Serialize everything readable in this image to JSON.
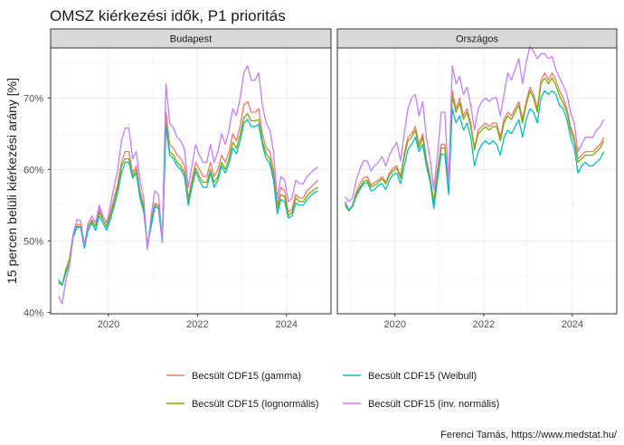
{
  "title": "OMSZ kiérkezési idők, P1 prioritás",
  "caption": "Ferenci Tamás, https://www.medstat.hu/",
  "colors": {
    "gamma": "#F8766D",
    "lognormal": "#7CAE00",
    "weibull": "#00BFC4",
    "invnormal": "#C77CFF",
    "strip_fill": "#d9d9d9",
    "grid": "#ebebeb",
    "panel_border": "#333333"
  },
  "chart_data": {
    "type": "line",
    "facets": [
      "Budapest",
      "Országos"
    ],
    "ylabel": "15 percen belüli kiérkezési arány [%]",
    "xlabel": "",
    "xlim": [
      2018.7,
      2025.0
    ],
    "ylim": [
      39.8,
      77.0
    ],
    "xticks": [
      2020,
      2022,
      2024
    ],
    "xtick_labels": [
      "2020",
      "2022",
      "2024"
    ],
    "yticks": [
      40,
      50,
      60,
      70
    ],
    "ytick_labels": [
      "40%",
      "50%",
      "60%",
      "70%"
    ],
    "grid": true,
    "legend": {
      "position": "bottom",
      "entries": [
        {
          "key": "gamma",
          "label": "Becsült CDF15 (gamma)"
        },
        {
          "key": "weibull",
          "label": "Becsült CDF15 (Weibull)"
        },
        {
          "key": "lognormal",
          "label": "Becsült CDF15 (lognormális)"
        },
        {
          "key": "invnormal",
          "label": "Becsült CDF15 (inv. normális)"
        }
      ]
    },
    "x": [
      2018.875,
      2018.958,
      2019.042,
      2019.125,
      2019.208,
      2019.292,
      2019.375,
      2019.458,
      2019.542,
      2019.625,
      2019.708,
      2019.792,
      2019.875,
      2019.958,
      2020.042,
      2020.125,
      2020.208,
      2020.292,
      2020.375,
      2020.458,
      2020.542,
      2020.625,
      2020.708,
      2020.792,
      2020.875,
      2020.958,
      2021.042,
      2021.125,
      2021.208,
      2021.292,
      2021.375,
      2021.458,
      2021.542,
      2021.625,
      2021.708,
      2021.792,
      2021.875,
      2021.958,
      2022.042,
      2022.125,
      2022.208,
      2022.292,
      2022.375,
      2022.458,
      2022.542,
      2022.625,
      2022.708,
      2022.792,
      2022.875,
      2022.958,
      2023.042,
      2023.125,
      2023.208,
      2023.292,
      2023.375,
      2023.458,
      2023.542,
      2023.625,
      2023.708,
      2023.792,
      2023.875,
      2023.958,
      2024.042,
      2024.125,
      2024.208,
      2024.292,
      2024.375,
      2024.458,
      2024.542,
      2024.625,
      2024.708
    ],
    "series": [
      {
        "facet": "Budapest",
        "values": {
          "gamma": [
            44.2,
            43.8,
            46,
            47.5,
            51,
            52.3,
            52.3,
            49,
            52,
            53,
            52,
            54.5,
            53,
            52,
            54,
            56,
            58,
            61,
            62.5,
            62.5,
            59.5,
            60.5,
            57,
            55,
            49,
            53,
            55.3,
            55,
            50,
            68,
            63.5,
            63,
            62,
            61.5,
            60.5,
            56,
            58.5,
            61,
            60,
            59,
            59,
            61,
            59,
            60,
            62,
            61,
            62.5,
            65,
            64,
            66,
            69,
            69.5,
            68,
            68,
            68.5,
            65,
            63,
            62.5,
            60,
            55,
            57.5,
            57,
            54,
            54.5,
            56.5,
            56,
            56,
            57,
            57.5,
            58,
            58.5
          ],
          "lognormal": [
            44.2,
            43.8,
            46,
            47.5,
            51,
            52,
            52,
            49,
            52,
            52.8,
            52,
            54,
            53,
            52,
            53.5,
            55.5,
            57.5,
            60.5,
            61.5,
            61.5,
            59,
            60,
            56.5,
            54.5,
            49,
            52.5,
            55,
            54.8,
            50,
            66.5,
            62.5,
            62,
            61,
            60.5,
            59.5,
            55.5,
            58,
            60.2,
            59,
            58.2,
            58.2,
            60,
            58.2,
            59,
            61,
            60,
            61.5,
            63.8,
            63,
            64.8,
            67.2,
            67.8,
            66.8,
            66.8,
            67,
            64,
            62.2,
            61.5,
            59.2,
            54.5,
            56.5,
            56.2,
            53.5,
            54,
            56,
            55.5,
            55.5,
            56.3,
            56.8,
            57.2,
            57.5
          ],
          "weibull": [
            44.6,
            43.8,
            45.5,
            46.8,
            50.5,
            51.9,
            51.9,
            49,
            51.5,
            52.5,
            51.5,
            53.5,
            52.5,
            51.5,
            53,
            54.8,
            56.8,
            59.5,
            61,
            61,
            58.8,
            59.5,
            56,
            54,
            49.5,
            52,
            54.8,
            54.5,
            49.8,
            66,
            62,
            61.5,
            60.5,
            60,
            59,
            55,
            57.5,
            59.7,
            58.5,
            57.5,
            57.5,
            59.5,
            57.5,
            58.5,
            60.5,
            59.5,
            60.8,
            63,
            62.2,
            64,
            66.5,
            67,
            66,
            66,
            66.3,
            63.5,
            61.5,
            60.8,
            58.5,
            53.8,
            55.8,
            55.5,
            53.2,
            53.5,
            55.3,
            55,
            55,
            55.8,
            56.3,
            56.8,
            57
          ],
          "invnormal": [
            42.3,
            41.2,
            44.5,
            46.5,
            51,
            53,
            52.8,
            49.5,
            52.5,
            53.5,
            52.5,
            55,
            53.5,
            52.5,
            55,
            57.5,
            60,
            64,
            65.8,
            65.8,
            61.5,
            62.5,
            58.5,
            56,
            48.8,
            53.5,
            57,
            56.5,
            50,
            72,
            66.5,
            65.8,
            64.5,
            64,
            62.8,
            57.5,
            60.5,
            63.5,
            62,
            61,
            61,
            63.5,
            61,
            62.5,
            65,
            63.5,
            65.5,
            68.5,
            67.5,
            70,
            73.5,
            74.5,
            72.5,
            72.5,
            73.5,
            69,
            66.5,
            65.5,
            62.5,
            56,
            59,
            58.5,
            55.5,
            56,
            58.5,
            58,
            58,
            59,
            59.5,
            60,
            60.3
          ]
        }
      },
      {
        "facet": "Országos",
        "values": {
          "gamma": [
            55.2,
            54.3,
            55,
            56.8,
            58,
            58.8,
            59,
            57.8,
            58.2,
            58.5,
            59,
            58.2,
            59.5,
            60.2,
            60.5,
            59,
            62.2,
            64.5,
            65,
            66,
            63.5,
            65,
            61.5,
            59,
            55.5,
            60,
            63.5,
            63.5,
            57,
            71,
            68.5,
            70,
            67.5,
            68.5,
            66.5,
            63,
            65.5,
            66,
            66.5,
            66,
            66.5,
            66.5,
            64.5,
            67,
            68,
            67.5,
            68.5,
            69.5,
            67,
            69.5,
            71.5,
            70.5,
            68.5,
            72.5,
            73.5,
            72.5,
            73.5,
            72.5,
            71,
            70,
            68.5,
            66,
            64.5,
            61.5,
            62,
            62.5,
            62.5,
            62.5,
            63,
            63.5,
            64.5
          ],
          "lognormal": [
            55,
            54.2,
            54.8,
            56.5,
            57.5,
            58.3,
            58.5,
            57.5,
            57.8,
            58.2,
            58.7,
            58,
            59.2,
            59.8,
            60.2,
            58.8,
            61.8,
            64,
            64.5,
            65.5,
            63,
            64.5,
            61,
            58.8,
            55.3,
            59.7,
            63,
            63,
            56.8,
            70.2,
            68,
            69.3,
            67,
            68,
            66,
            62.7,
            65,
            65.5,
            66,
            65.5,
            66,
            66,
            64,
            66.5,
            67.5,
            67,
            68,
            69,
            66.5,
            69,
            71,
            70,
            68,
            72,
            72.8,
            72,
            72.8,
            71.8,
            70.3,
            69.3,
            68,
            65.5,
            64,
            61,
            61.5,
            62,
            62,
            62,
            62.5,
            63,
            64
          ],
          "weibull": [
            55.5,
            54.3,
            54.8,
            56.2,
            57.2,
            58,
            58.2,
            57,
            57.2,
            57.8,
            58,
            57.2,
            58.5,
            59.3,
            59.5,
            58,
            60.5,
            62.8,
            63.5,
            64.5,
            62.5,
            63.5,
            60.5,
            58.3,
            54.5,
            58.5,
            62.2,
            62,
            56.5,
            68.5,
            66.5,
            67.5,
            65.5,
            66.5,
            64.5,
            60.5,
            62.5,
            63.5,
            64,
            63.5,
            64,
            63.5,
            62,
            64.5,
            65.5,
            65,
            66,
            67,
            64.5,
            67,
            68.5,
            68,
            66.5,
            70,
            71,
            70.5,
            71,
            70.5,
            69,
            68.5,
            67,
            64.5,
            63,
            59.5,
            60.5,
            61,
            60.5,
            60.5,
            61,
            61.5,
            62.5
          ],
          "invnormal": [
            56.2,
            55.5,
            56,
            58.5,
            60,
            61.2,
            61.2,
            59.8,
            60.5,
            61,
            61.8,
            60.5,
            62,
            63,
            63.8,
            61.2,
            65,
            68.5,
            70,
            70.5,
            67.5,
            69.5,
            64.5,
            61.5,
            57.2,
            62,
            68,
            68,
            58,
            74.5,
            72,
            73,
            70.5,
            71.5,
            69,
            65.5,
            68.5,
            69.5,
            70,
            69.5,
            70,
            70,
            67.5,
            70.5,
            73.5,
            72.5,
            74,
            75.5,
            72,
            75,
            77.2,
            76.5,
            75.5,
            76.2,
            76.2,
            75.5,
            75.8,
            74,
            72.8,
            71.8,
            70.5,
            68,
            66.5,
            62.5,
            63.5,
            64.5,
            64.5,
            64.5,
            65.5,
            66,
            67
          ]
        }
      }
    ]
  }
}
